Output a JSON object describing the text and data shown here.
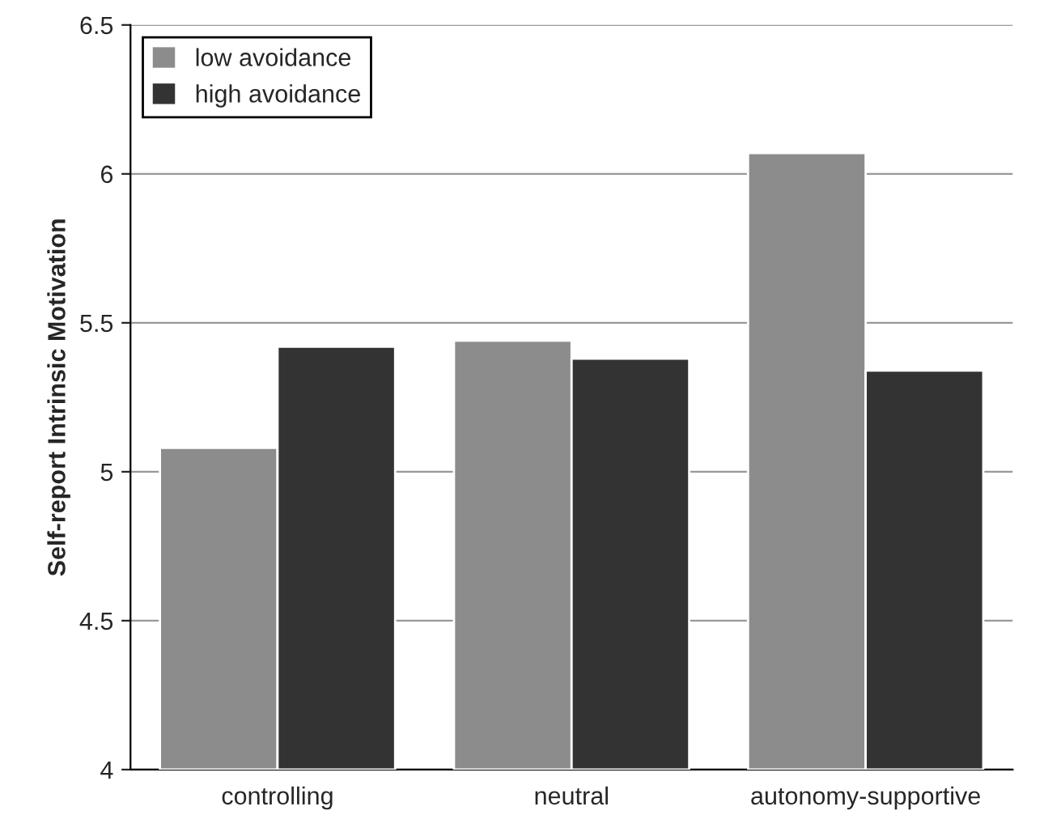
{
  "chart_data": {
    "type": "bar",
    "ylabel": "Self-report Intrinsic Motivation",
    "categories": [
      "controlling",
      "neutral",
      "autonomy-supportive"
    ],
    "series": [
      {
        "name": "low avoidance",
        "color": "#8c8c8c",
        "values": [
          5.08,
          5.44,
          6.07
        ]
      },
      {
        "name": "high avoidance",
        "color": "#333333",
        "values": [
          5.42,
          5.38,
          5.34
        ]
      }
    ],
    "ylim": [
      4,
      6.5
    ],
    "yticks": [
      4,
      4.5,
      5,
      5.5,
      6,
      6.5
    ],
    "grid": "y",
    "legend": "top left"
  }
}
